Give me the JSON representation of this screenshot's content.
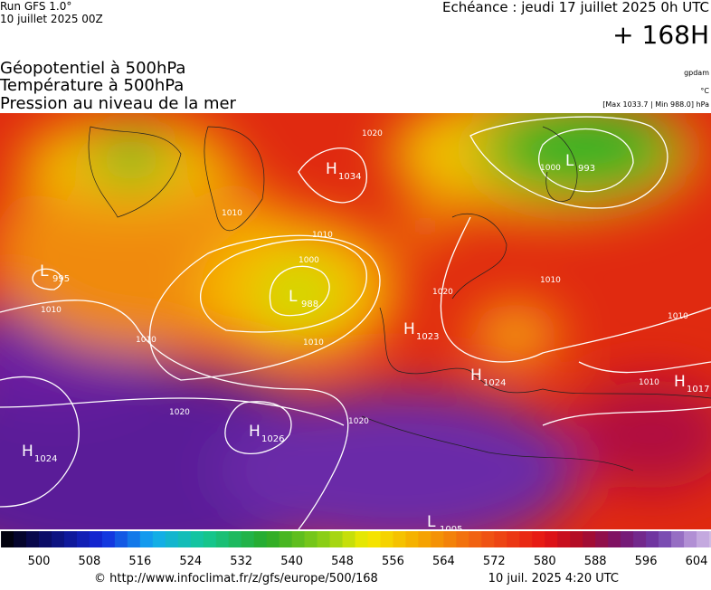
{
  "header": {
    "run": "Run GFS 1.0°",
    "date": "10 juillet 2025 00Z",
    "echeance": "Echéance : jeudi 17 juillet 2025 0h UTC",
    "lead": "+ 168H"
  },
  "fields": [
    "Géopotentiel à 500hPa",
    "Température à 500hPa",
    "Pression au niveau de la mer"
  ],
  "units": [
    "gpdam",
    "°C",
    "[Max 1033.7 | Min 988.0] hPa"
  ],
  "centers": [
    {
      "type": "H",
      "value": "1034"
    },
    {
      "type": "L",
      "value": "993"
    },
    {
      "type": "L",
      "value": "995"
    },
    {
      "type": "L",
      "value": "988"
    },
    {
      "type": "H",
      "value": "1023"
    },
    {
      "type": "H",
      "value": "1024"
    },
    {
      "type": "H",
      "value": "1017"
    },
    {
      "type": "H",
      "value": "1026"
    },
    {
      "type": "H",
      "value": "1024"
    },
    {
      "type": "L",
      "value": "1005"
    }
  ],
  "isobars": [
    "1020",
    "1010",
    "1010",
    "1000",
    "1010",
    "1010",
    "1020",
    "1020",
    "1000",
    "1010",
    "1010",
    "1010",
    "1010",
    "1020"
  ],
  "colorbar": [
    500,
    508,
    516,
    524,
    532,
    540,
    548,
    556,
    564,
    572,
    580,
    588,
    596,
    604
  ],
  "footer": {
    "url": "© http://www.infoclimat.fr/z/gfs/europe/500/168",
    "time": "10 juil. 2025  4:20 UTC"
  }
}
